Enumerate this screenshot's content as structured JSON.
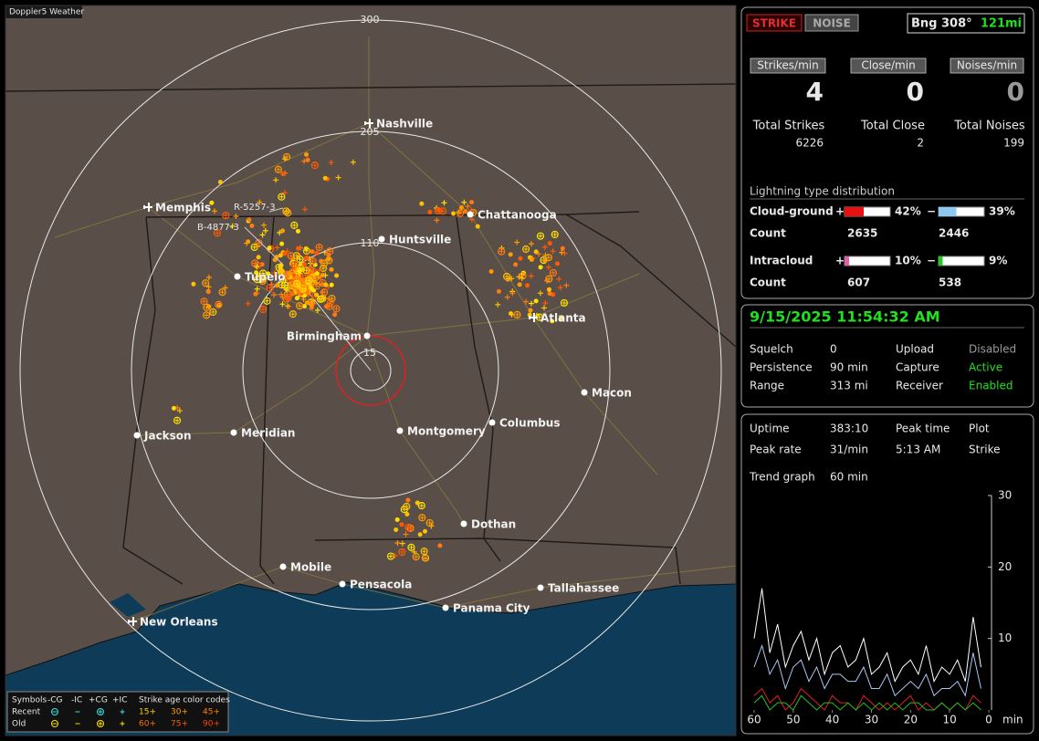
{
  "app": {
    "title": "Doppler5 Weather"
  },
  "map": {
    "range_labels": [
      "300",
      "205",
      "110",
      "15"
    ],
    "markers": [
      "R-5257-3",
      "B-4877-3"
    ],
    "cities": [
      "Nashville",
      "Memphis",
      "Chattanooga",
      "Huntsville",
      "Tupelo",
      "Atlanta",
      "Birmingham",
      "Macon",
      "Jackson",
      "Meridian",
      "Montgomery",
      "Columbus",
      "Dothan",
      "Mobile",
      "Pensacola",
      "Panama City",
      "Tallahassee",
      "New Orleans"
    ]
  },
  "legend": {
    "symbols_label": "Symbols",
    "symbol_headers": [
      "-CG",
      "-IC",
      "+CG",
      "+IC"
    ],
    "age_label": "Strike age color codes",
    "rows": [
      {
        "label": "Recent",
        "ages": [
          "15+",
          "30+",
          "45+"
        ]
      },
      {
        "label": "Old",
        "ages": [
          "60+",
          "75+",
          "90+"
        ]
      }
    ]
  },
  "status": {
    "buttons": [
      "STRIKE",
      "NOISE"
    ],
    "bearing": "Bng 308°",
    "distance": "121mi",
    "rates": [
      {
        "label": "Strikes/min",
        "value": "4"
      },
      {
        "label": "Close/min",
        "value": "0"
      },
      {
        "label": "Noises/min",
        "value": "0"
      }
    ],
    "totals": [
      {
        "label": "Total Strikes",
        "value": "6226"
      },
      {
        "label": "Total Close",
        "value": "2"
      },
      {
        "label": "Total Noises",
        "value": "199"
      }
    ]
  },
  "distribution": {
    "title": "Lightning type distribution",
    "count_label": "Count",
    "signs": [
      "+",
      "−"
    ],
    "rows": [
      {
        "label": "Cloud-ground",
        "pos": {
          "value": 42,
          "label": "42%"
        },
        "neg": {
          "value": 39,
          "label": "39%"
        },
        "pos_count": "2635",
        "neg_count": "2446",
        "pos_color": "#e81010",
        "neg_color": "#8ec8f0"
      },
      {
        "label": "Intracloud",
        "pos": {
          "value": 10,
          "label": "10%"
        },
        "neg": {
          "value": 9,
          "label": "9%"
        },
        "pos_count": "607",
        "neg_count": "538",
        "pos_color": "#e060a8",
        "neg_color": "#20c820"
      }
    ]
  },
  "info": {
    "datetime": "9/15/2025 11:54:32 AM",
    "settings": [
      [
        "Squelch",
        "0",
        "Upload",
        "Disabled"
      ],
      [
        "Persistence",
        "90 min",
        "Capture",
        "Active"
      ],
      [
        "Range",
        "313 mi",
        "Receiver",
        "Enabled"
      ]
    ]
  },
  "stats": {
    "rows": [
      [
        "Uptime",
        "383:10",
        "Peak time",
        "Plot"
      ],
      [
        "Peak rate",
        "31/min",
        "5:13 AM",
        "Strike"
      ]
    ],
    "trend_label": "Trend graph",
    "trend_value": "60 min"
  },
  "chart_data": {
    "type": "line",
    "x_unit": "min",
    "x": [
      60,
      58,
      56,
      54,
      52,
      50,
      48,
      46,
      44,
      42,
      40,
      38,
      36,
      34,
      32,
      30,
      28,
      26,
      24,
      22,
      20,
      18,
      16,
      14,
      12,
      10,
      8,
      6,
      4,
      2
    ],
    "xlim": [
      60,
      0
    ],
    "xticks": [
      60,
      50,
      40,
      30,
      20,
      10,
      0
    ],
    "ylim": [
      0,
      30
    ],
    "yticks": [
      10,
      20,
      30
    ],
    "series": [
      {
        "color": "#ffffff",
        "values": [
          10,
          17,
          8,
          12,
          6,
          9,
          11,
          7,
          10,
          5,
          8,
          9,
          6,
          7,
          10,
          5,
          6,
          8,
          4,
          6,
          7,
          5,
          9,
          4,
          6,
          5,
          7,
          4,
          13,
          6
        ]
      },
      {
        "color": "#a8c8f0",
        "values": [
          6,
          9,
          5,
          7,
          3,
          6,
          7,
          4,
          6,
          3,
          5,
          5,
          4,
          4,
          6,
          3,
          3,
          5,
          2,
          3,
          4,
          3,
          5,
          2,
          3,
          3,
          4,
          2,
          8,
          3
        ]
      },
      {
        "color": "#e02020",
        "values": [
          2,
          3,
          1,
          2,
          0,
          1,
          3,
          2,
          1,
          0,
          2,
          1,
          1,
          0,
          2,
          1,
          0,
          1,
          0,
          1,
          2,
          0,
          1,
          0,
          1,
          0,
          1,
          0,
          2,
          1
        ]
      },
      {
        "color": "#20c020",
        "values": [
          1,
          2,
          0,
          1,
          1,
          0,
          2,
          1,
          0,
          1,
          1,
          0,
          1,
          0,
          1,
          0,
          1,
          0,
          1,
          0,
          1,
          1,
          0,
          0,
          1,
          0,
          1,
          0,
          1,
          0
        ]
      }
    ]
  }
}
